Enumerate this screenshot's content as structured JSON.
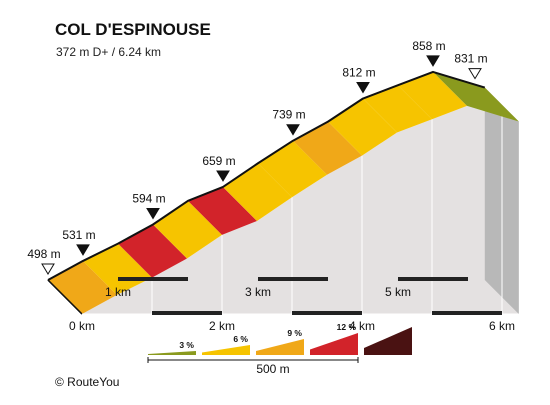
{
  "title": "COL D'ESPINOUSE",
  "subtitle": "372 m D+ / 6.24 km",
  "footer": "© RouteYou",
  "chart_data": {
    "type": "area",
    "title": "COL D'ESPINOUSE",
    "subtitle": "372 m D+ / 6.24 km",
    "xunit": "km",
    "yunit": "m",
    "xlim": [
      0,
      6.24
    ],
    "ticks": [
      {
        "km": 0,
        "label": "0 km"
      },
      {
        "km": 1,
        "label": "1 km"
      },
      {
        "km": 2,
        "label": "2 km"
      },
      {
        "km": 3,
        "label": "3 km"
      },
      {
        "km": 4,
        "label": "4 km"
      },
      {
        "km": 5,
        "label": "5 km"
      },
      {
        "km": 6,
        "label": "6 km"
      }
    ],
    "profile": [
      {
        "km": 0.0,
        "elevation": 498
      },
      {
        "km": 0.5,
        "elevation": 531
      },
      {
        "km": 1.0,
        "elevation": 561
      },
      {
        "km": 1.5,
        "elevation": 594
      },
      {
        "km": 2.0,
        "elevation": 635
      },
      {
        "km": 2.5,
        "elevation": 659
      },
      {
        "km": 3.0,
        "elevation": 700
      },
      {
        "km": 3.5,
        "elevation": 739
      },
      {
        "km": 4.0,
        "elevation": 772
      },
      {
        "km": 4.5,
        "elevation": 812
      },
      {
        "km": 5.0,
        "elevation": 835
      },
      {
        "km": 5.5,
        "elevation": 858
      },
      {
        "km": 6.24,
        "elevation": 831
      }
    ],
    "segment_colors": [
      "#f0a818",
      "#f6c400",
      "#d2232a",
      "#f6c400",
      "#d2232a",
      "#f6c400",
      "#f6c400",
      "#f0a818",
      "#f6c400",
      "#f6c400",
      "#f6c400",
      "#8a9a1e"
    ],
    "markers": [
      {
        "km": 0.0,
        "label": "498 m",
        "style": "open"
      },
      {
        "km": 0.5,
        "label": "531 m",
        "style": "filled"
      },
      {
        "km": 1.5,
        "label": "594 m",
        "style": "filled"
      },
      {
        "km": 2.5,
        "label": "659 m",
        "style": "filled"
      },
      {
        "km": 3.5,
        "label": "739 m",
        "style": "filled"
      },
      {
        "km": 4.5,
        "label": "812 m",
        "style": "filled"
      },
      {
        "km": 5.5,
        "label": "858 m",
        "style": "filled"
      },
      {
        "km": 6.1,
        "label": "831 m",
        "style": "open"
      }
    ],
    "legend": {
      "items": [
        {
          "label": "3 %",
          "color": "#8a9a1e"
        },
        {
          "label": "6 %",
          "color": "#f6c400"
        },
        {
          "label": "9 %",
          "color": "#f0a818"
        },
        {
          "label": "12 %",
          "color": "#d2232a"
        },
        {
          "label": "",
          "color": "#4a1212"
        }
      ],
      "scale_label": "500 m"
    }
  }
}
